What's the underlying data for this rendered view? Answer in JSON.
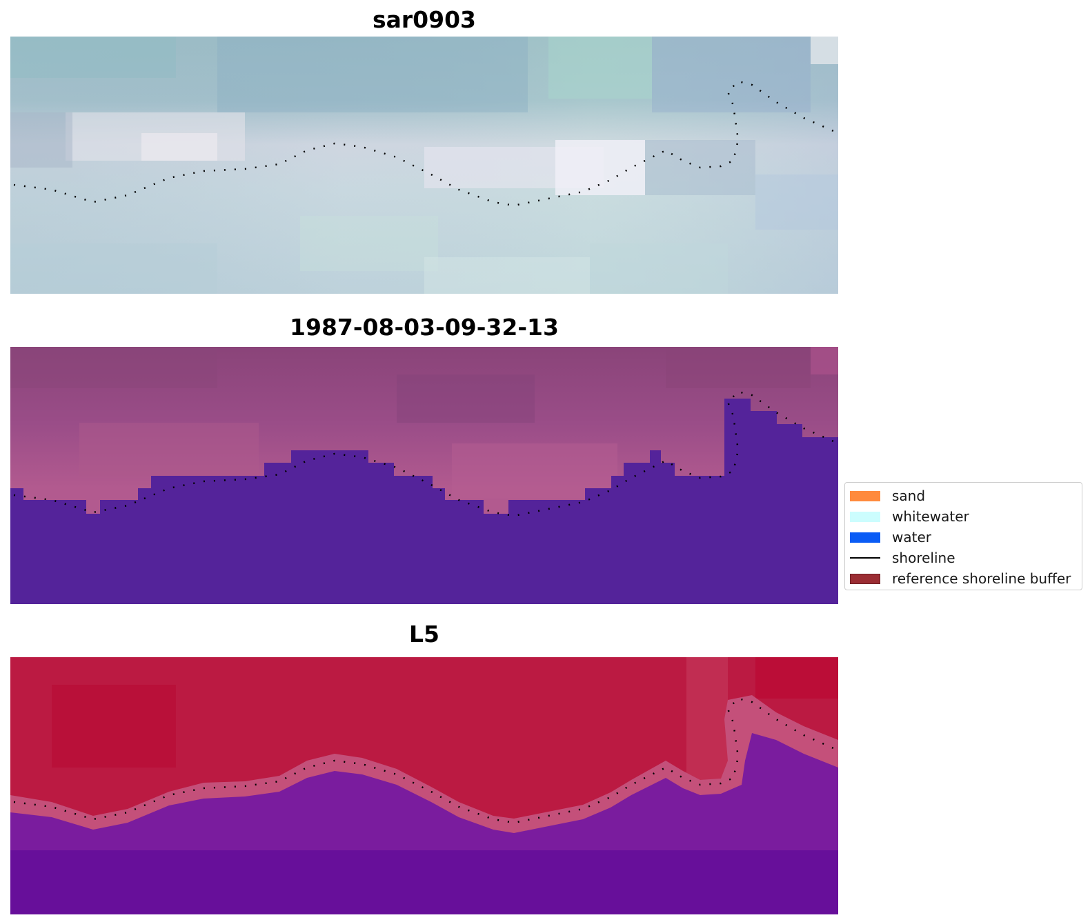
{
  "panels": [
    {
      "title": "sar0903"
    },
    {
      "title": "1987-08-03-09-32-13"
    },
    {
      "title": "L5"
    }
  ],
  "legend": {
    "items": [
      {
        "label": "sand",
        "color": "#ff8a3d",
        "kind": "patch"
      },
      {
        "label": "whitewater",
        "color": "#ccfdfe",
        "kind": "patch"
      },
      {
        "label": "water",
        "color": "#0a5cf5",
        "kind": "patch"
      },
      {
        "label": "shoreline",
        "color": "#000000",
        "kind": "line"
      },
      {
        "label": "reference shoreline buffer",
        "color": "#9b2d33",
        "kind": "patch"
      }
    ]
  }
}
